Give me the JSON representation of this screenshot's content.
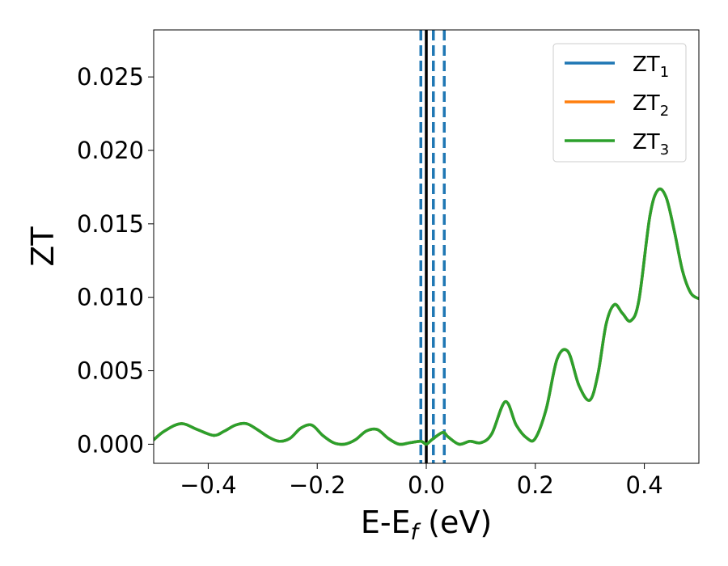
{
  "chart_data": {
    "type": "line",
    "xlabel": "E-E",
    "xlabel_sub": "f",
    "xlabel_unit": "(eV)",
    "ylabel": "ZT",
    "xlim": [
      -0.5,
      0.5
    ],
    "ylim": [
      -0.0013,
      0.0282
    ],
    "xticks": [
      -0.4,
      -0.2,
      0.0,
      0.2,
      0.4
    ],
    "xtick_labels": [
      "−0.4",
      "−0.2",
      "0.0",
      "0.2",
      "0.4"
    ],
    "yticks": [
      0.0,
      0.005,
      0.01,
      0.015,
      0.02,
      0.025
    ],
    "ytick_labels": [
      "0.000",
      "0.005",
      "0.010",
      "0.015",
      "0.020",
      "0.025"
    ],
    "grid": false,
    "legend_position": "top-right",
    "x": [
      -0.5,
      -0.48,
      -0.45,
      -0.42,
      -0.39,
      -0.37,
      -0.35,
      -0.33,
      -0.31,
      -0.29,
      -0.27,
      -0.25,
      -0.23,
      -0.21,
      -0.19,
      -0.17,
      -0.15,
      -0.13,
      -0.11,
      -0.09,
      -0.07,
      -0.05,
      -0.03,
      -0.01,
      0.0,
      0.01,
      0.03,
      0.04,
      0.06,
      0.08,
      0.1,
      0.12,
      0.145,
      0.165,
      0.185,
      0.2,
      0.22,
      0.24,
      0.26,
      0.28,
      0.3,
      0.315,
      0.33,
      0.345,
      0.36,
      0.375,
      0.39,
      0.41,
      0.425,
      0.44,
      0.455,
      0.47,
      0.485,
      0.5
    ],
    "series": [
      {
        "name": "ZT",
        "name_sub": "1",
        "color": "#1f77b4",
        "values": [
          0.0003,
          0.0009,
          0.0014,
          0.001,
          0.0006,
          0.0009,
          0.0013,
          0.0014,
          0.001,
          0.0005,
          0.0002,
          0.0004,
          0.0011,
          0.0013,
          0.0006,
          0.0001,
          0.0,
          0.0003,
          0.0009,
          0.001,
          0.0004,
          0.0,
          0.0001,
          0.0002,
          0.0,
          0.0003,
          0.0008,
          0.0005,
          0.0,
          0.0002,
          0.0001,
          0.0007,
          0.0029,
          0.0013,
          0.0004,
          0.0004,
          0.0024,
          0.0058,
          0.0063,
          0.004,
          0.003,
          0.0048,
          0.0082,
          0.0095,
          0.0089,
          0.0084,
          0.0098,
          0.0155,
          0.0173,
          0.0168,
          0.0145,
          0.0118,
          0.0103,
          0.0099
        ]
      },
      {
        "name": "ZT",
        "name_sub": "2",
        "color": "#ff7f0e",
        "values": [
          0.0003,
          0.0009,
          0.0014,
          0.001,
          0.0006,
          0.0009,
          0.0013,
          0.0014,
          0.001,
          0.0005,
          0.0002,
          0.0004,
          0.0011,
          0.0013,
          0.0006,
          0.0001,
          0.0,
          0.0003,
          0.0009,
          0.001,
          0.0004,
          0.0,
          0.0001,
          0.0002,
          0.0,
          0.0003,
          0.0008,
          0.0005,
          0.0,
          0.0002,
          0.0001,
          0.0007,
          0.0029,
          0.0013,
          0.0004,
          0.0004,
          0.0024,
          0.0058,
          0.0063,
          0.004,
          0.003,
          0.0048,
          0.0082,
          0.0095,
          0.0089,
          0.0084,
          0.0098,
          0.0155,
          0.0173,
          0.0168,
          0.0145,
          0.0118,
          0.0103,
          0.0099
        ]
      },
      {
        "name": "ZT",
        "name_sub": "3",
        "color": "#2ca02c",
        "values": [
          0.0003,
          0.0009,
          0.0014,
          0.001,
          0.0006,
          0.0009,
          0.0013,
          0.0014,
          0.001,
          0.0005,
          0.0002,
          0.0004,
          0.0011,
          0.0013,
          0.0006,
          0.0001,
          0.0,
          0.0003,
          0.0009,
          0.001,
          0.0004,
          0.0,
          0.0001,
          0.0002,
          0.0,
          0.0003,
          0.0008,
          0.0005,
          0.0,
          0.0002,
          0.0001,
          0.0007,
          0.0029,
          0.0013,
          0.0004,
          0.0004,
          0.0024,
          0.0058,
          0.0063,
          0.004,
          0.003,
          0.0048,
          0.0082,
          0.0095,
          0.0089,
          0.0084,
          0.0098,
          0.0155,
          0.0173,
          0.0168,
          0.0145,
          0.0118,
          0.0103,
          0.0099
        ]
      }
    ],
    "vlines": [
      {
        "x": 0.0,
        "style": "solid",
        "color": "#000000"
      },
      {
        "x": -0.01,
        "style": "dashed",
        "color": "#1f77b4"
      },
      {
        "x": 0.013,
        "style": "dashed",
        "color": "#1f77b4"
      },
      {
        "x": 0.033,
        "style": "dashed",
        "color": "#1f77b4"
      }
    ]
  }
}
